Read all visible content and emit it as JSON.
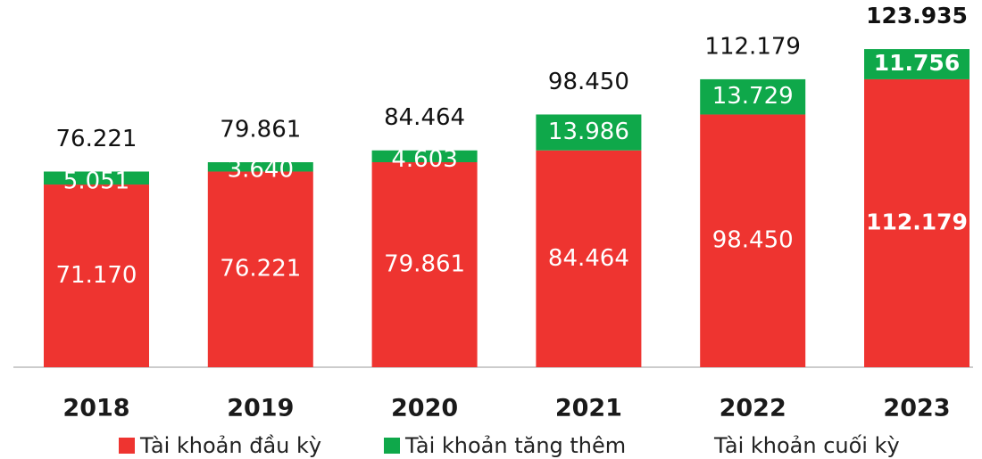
{
  "chart_data": {
    "type": "stacked_bar",
    "categories": [
      "2018",
      "2019",
      "2020",
      "2021",
      "2022",
      "2023"
    ],
    "series": [
      {
        "name": "Tài khoản đầu kỳ",
        "color": "#ee3430",
        "values": [
          71170,
          76221,
          79861,
          84464,
          98450,
          112179
        ],
        "value_labels": [
          "71.170",
          "76.221",
          "79.861",
          "84.464",
          "98.450",
          "112.179"
        ]
      },
      {
        "name": "Tài khoản tăng thêm",
        "color": "#0fa84a",
        "values": [
          5051,
          3640,
          4603,
          13986,
          13729,
          11756
        ],
        "value_labels": [
          "5.051",
          "3.640",
          "4.603",
          "13.986",
          "13.729",
          "11.756"
        ]
      },
      {
        "name": "Tài khoản cuối kỳ",
        "values": [
          76221,
          79861,
          84464,
          98450,
          112179,
          123935
        ],
        "value_labels": [
          "76.221",
          "79.861",
          "84.464",
          "98.450",
          "112.179",
          "123.935"
        ]
      }
    ]
  }
}
